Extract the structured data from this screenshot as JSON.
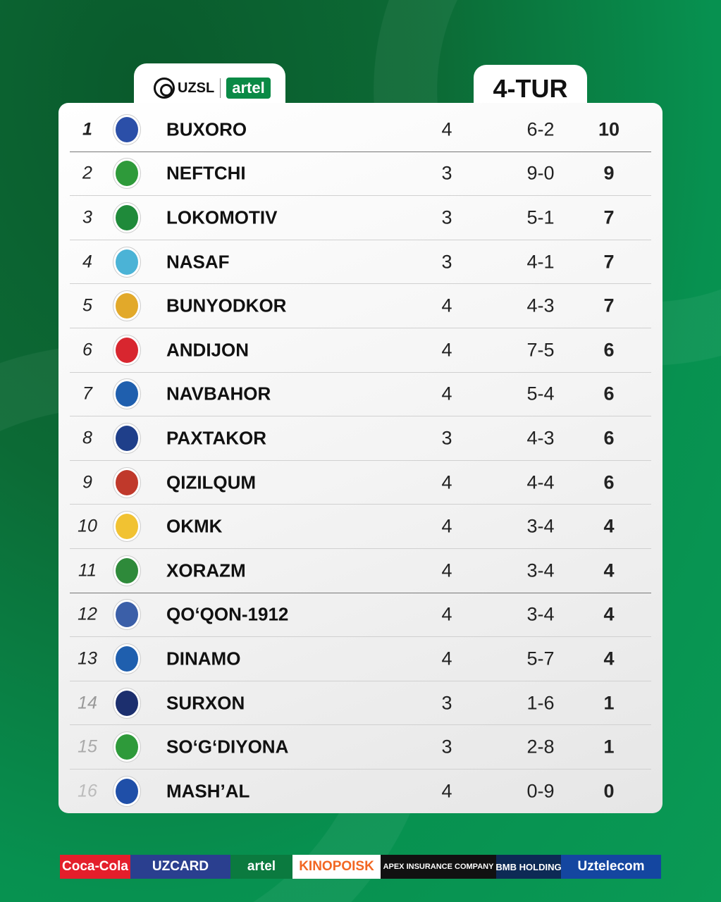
{
  "header": {
    "league": "UZSL",
    "sponsor": "artel",
    "round": "4-TUR"
  },
  "colors": {
    "background": "#0c7a3e",
    "accent": "#0a8a46"
  },
  "standings": [
    {
      "rank": "1",
      "team": "BUXORO",
      "played": "4",
      "goals": "6-2",
      "points": "10",
      "logo_color": "#2b4fa8"
    },
    {
      "rank": "2",
      "team": "NEFTCHI",
      "played": "3",
      "goals": "9-0",
      "points": "9",
      "logo_color": "#2e9a3a"
    },
    {
      "rank": "3",
      "team": "LOKOMOTIV",
      "played": "3",
      "goals": "5-1",
      "points": "7",
      "logo_color": "#1f8a3a"
    },
    {
      "rank": "4",
      "team": "NASAF",
      "played": "3",
      "goals": "4-1",
      "points": "7",
      "logo_color": "#4bb3d6"
    },
    {
      "rank": "5",
      "team": "BUNYODKOR",
      "played": "4",
      "goals": "4-3",
      "points": "7",
      "logo_color": "#e2a92a"
    },
    {
      "rank": "6",
      "team": "ANDIJON",
      "played": "4",
      "goals": "7-5",
      "points": "6",
      "logo_color": "#d8262f"
    },
    {
      "rank": "7",
      "team": "NAVBAHOR",
      "played": "4",
      "goals": "5-4",
      "points": "6",
      "logo_color": "#1f5fae"
    },
    {
      "rank": "8",
      "team": "PAXTAKOR",
      "played": "3",
      "goals": "4-3",
      "points": "6",
      "logo_color": "#1f3f8a"
    },
    {
      "rank": "9",
      "team": "QIZILQUM",
      "played": "4",
      "goals": "4-4",
      "points": "6",
      "logo_color": "#c0392b"
    },
    {
      "rank": "10",
      "team": "OKMK",
      "played": "4",
      "goals": "3-4",
      "points": "4",
      "logo_color": "#f1c232"
    },
    {
      "rank": "11",
      "team": "XORAZM",
      "played": "4",
      "goals": "3-4",
      "points": "4",
      "logo_color": "#2e8a3a"
    },
    {
      "rank": "12",
      "team": "QO‘QON-1912",
      "played": "4",
      "goals": "3-4",
      "points": "4",
      "logo_color": "#3b5fa8"
    },
    {
      "rank": "13",
      "team": "DINAMO",
      "played": "4",
      "goals": "5-7",
      "points": "4",
      "logo_color": "#1f5fae"
    },
    {
      "rank": "14",
      "team": "SURXON",
      "played": "3",
      "goals": "1-6",
      "points": "1",
      "logo_color": "#1c2f6e"
    },
    {
      "rank": "15",
      "team": "SO‘G‘DIYONA",
      "played": "3",
      "goals": "2-8",
      "points": "1",
      "logo_color": "#2e9a3a"
    },
    {
      "rank": "16",
      "team": "MASH’AL",
      "played": "4",
      "goals": "0-9",
      "points": "0",
      "logo_color": "#1f4fa8"
    }
  ],
  "sponsors": [
    {
      "name": "Coca-Cola",
      "bg": "#e41e2b",
      "fg": "#ffffff"
    },
    {
      "name": "UZCARD",
      "bg": "#2a3f8f",
      "fg": "#ffffff"
    },
    {
      "name": "artel",
      "bg": "#0b7a3f",
      "fg": "#ffffff"
    },
    {
      "name": "KINOPOISK",
      "bg": "#ffffff",
      "fg": "#f26722"
    },
    {
      "name": "APEX INSURANCE COMPANY",
      "bg": "#111111",
      "fg": "#ffffff"
    },
    {
      "name": "BMB HOLDING",
      "bg": "#0d2a55",
      "fg": "#ffffff"
    },
    {
      "name": "Uztelecom",
      "bg": "#1446a0",
      "fg": "#ffffff"
    }
  ]
}
